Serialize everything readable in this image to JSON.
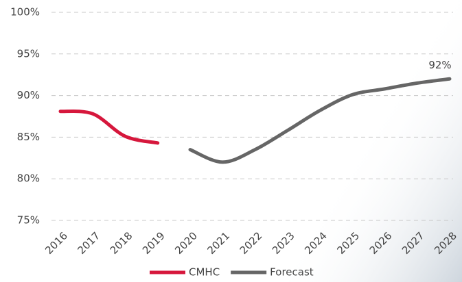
{
  "chart_data": {
    "type": "line",
    "categories": [
      "2016",
      "2017",
      "2018",
      "2019",
      "2020",
      "2021",
      "2022",
      "2023",
      "2024",
      "2025",
      "2026",
      "2027",
      "2028"
    ],
    "series": [
      {
        "name": "CMHC",
        "color": "#d6173c",
        "values": [
          88.1,
          87.8,
          85.1,
          84.3,
          null,
          null,
          null,
          null,
          null,
          null,
          null,
          null,
          null
        ]
      },
      {
        "name": "Forecast",
        "color": "#666666",
        "values": [
          null,
          null,
          null,
          null,
          83.5,
          82.0,
          83.5,
          85.8,
          88.2,
          90.1,
          90.8,
          91.5,
          92.0
        ],
        "value_labels": [
          null,
          null,
          null,
          null,
          null,
          null,
          null,
          null,
          null,
          null,
          null,
          null,
          "92%"
        ]
      }
    ],
    "ylim": [
      75,
      100
    ],
    "yticks": [
      {
        "value": 75,
        "label": "75%"
      },
      {
        "value": 80,
        "label": "80%"
      },
      {
        "value": 85,
        "label": "85%"
      },
      {
        "value": 90,
        "label": "90%"
      },
      {
        "value": 95,
        "label": "95%"
      },
      {
        "value": 100,
        "label": "100%"
      }
    ],
    "grid": true,
    "legend": "bottom"
  }
}
